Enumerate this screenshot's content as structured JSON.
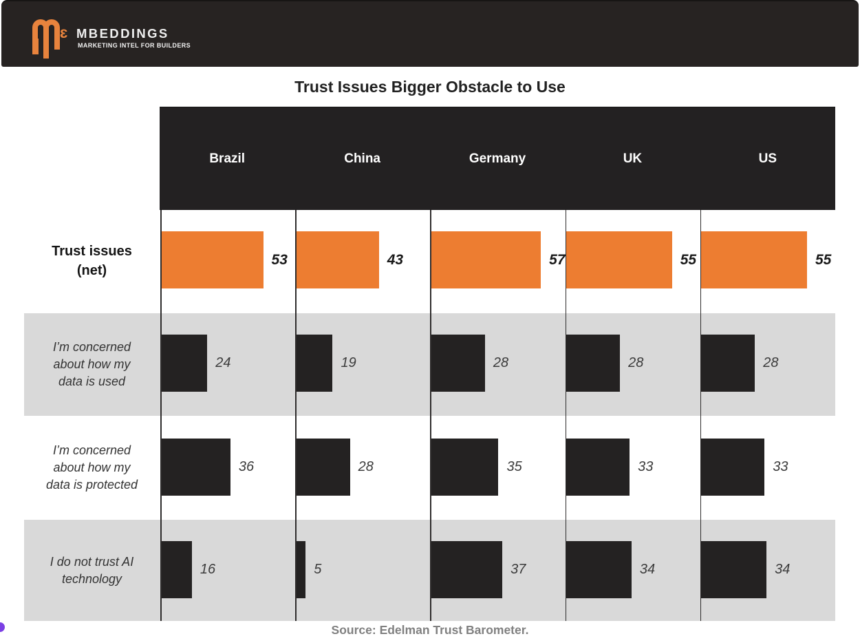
{
  "brand": {
    "epsilon": "ɛ",
    "name": "MBEDDINGS",
    "tagline": "MARKETING INTEL FOR BUILDERS"
  },
  "title": "Trust Issues Bigger Obstacle to Use",
  "source": "Source: Edelman Trust Barometer.",
  "chart_data": {
    "type": "bar",
    "orientation": "horizontal",
    "title": "Trust Issues Bigger Obstacle to Use",
    "columns": [
      "Brazil",
      "China",
      "Germany",
      "UK",
      "US"
    ],
    "rows": [
      {
        "label": "Trust issues\n(net)",
        "style": "net",
        "values": [
          53,
          43,
          57,
          55,
          55
        ]
      },
      {
        "label": "I’m concerned\nabout how my\ndata is used",
        "style": "dark",
        "values": [
          24,
          19,
          28,
          28,
          28
        ]
      },
      {
        "label": "I’m concerned\nabout how my\ndata is protected",
        "style": "dark",
        "values": [
          36,
          28,
          35,
          33,
          33
        ]
      },
      {
        "label": "I do not trust AI\ntechnology",
        "style": "dark",
        "values": [
          16,
          5,
          37,
          34,
          34
        ]
      }
    ],
    "scale_max": 70,
    "legend": "none",
    "colors": {
      "net_bar": "#ED7D31",
      "bar": "#242222",
      "row_alt_bg": "#D9D9D9",
      "header_bg": "#232122",
      "accent_dot": "#7B3FE4",
      "logo_orange": "#E8833D"
    }
  }
}
